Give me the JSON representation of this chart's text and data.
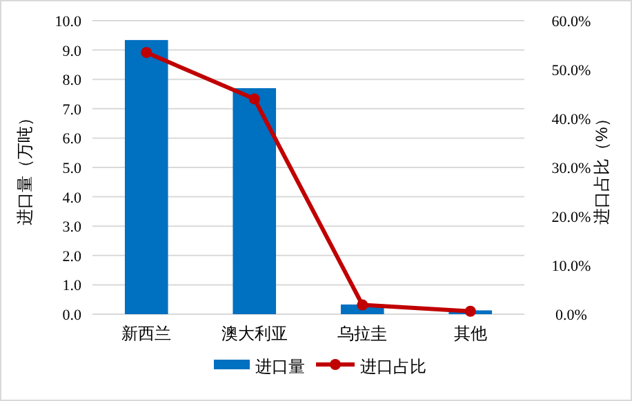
{
  "chart_data": {
    "type": "bar",
    "ylabel": "进口量（万吨）",
    "y2label": "进口占比（%）",
    "categories": [
      "新西兰",
      "澳大利亚",
      "乌拉圭",
      "其他"
    ],
    "series": [
      {
        "name": "进口量",
        "color": "#0070c0",
        "values": [
          9.34,
          7.7,
          0.33,
          0.13
        ]
      },
      {
        "name": "进口占比",
        "type": "line",
        "axis": "y2",
        "color": "#c00000",
        "marker": "circle",
        "values": [
          53.5,
          44.0,
          1.9,
          0.6
        ]
      }
    ],
    "ylim": [
      0,
      10
    ],
    "yticks": [
      {
        "value": 0,
        "label": "0.0"
      },
      {
        "value": 1,
        "label": "1.0"
      },
      {
        "value": 2,
        "label": "2.0"
      },
      {
        "value": 3,
        "label": "3.0"
      },
      {
        "value": 4,
        "label": "4.0"
      },
      {
        "value": 5,
        "label": "5.0"
      },
      {
        "value": 6,
        "label": "6.0"
      },
      {
        "value": 7,
        "label": "7.0"
      },
      {
        "value": 8,
        "label": "8.0"
      },
      {
        "value": 9,
        "label": "9.0"
      },
      {
        "value": 10,
        "label": "10.0"
      }
    ],
    "y2lim": [
      0,
      60
    ],
    "y2ticks": [
      {
        "value": 0,
        "label": "0.0%"
      },
      {
        "value": 10,
        "label": "10.0%"
      },
      {
        "value": 20,
        "label": "20.0%"
      },
      {
        "value": 30,
        "label": "30.0%"
      },
      {
        "value": 40,
        "label": "40.0%"
      },
      {
        "value": 50,
        "label": "50.0%"
      },
      {
        "value": 60,
        "label": "60.0%"
      }
    ],
    "grid": "y",
    "legend": "bottom"
  }
}
